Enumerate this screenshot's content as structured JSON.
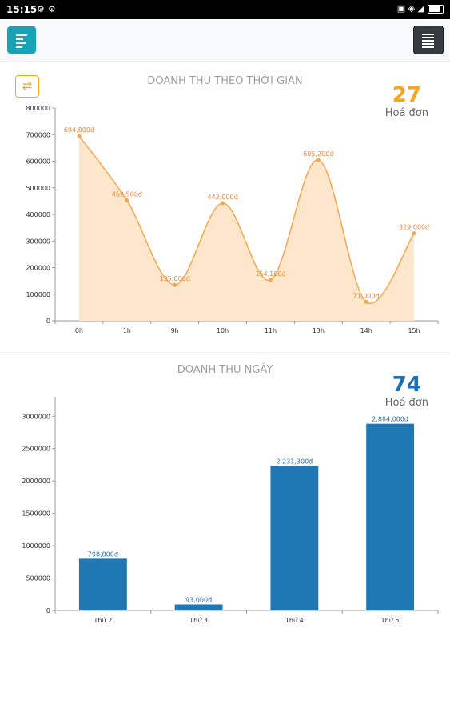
{
  "status": {
    "time": "15:15"
  },
  "charts": [
    {
      "header": {
        "title": "DOANH THU THEO THỜI GIAN",
        "count": "27",
        "count_label": "Hoá đơn"
      },
      "chart_data": {
        "type": "area",
        "title": "DOANH THU THEO THỜI GIAN",
        "categories": [
          "0h",
          "1h",
          "9h",
          "10h",
          "11h",
          "13h",
          "14h",
          "15h"
        ],
        "values": [
          694800,
          452500,
          135000,
          442000,
          154100,
          605200,
          71000,
          329000
        ],
        "data_labels": [
          "694,800đ",
          "452,500đ",
          "135,000đ",
          "442,000đ",
          "154,100đ",
          "605,200đ",
          "71,000đ",
          "329,000đ"
        ],
        "yticks": [
          "0",
          "100000",
          "200000",
          "300000",
          "400000",
          "500000",
          "600000",
          "700000",
          "800000"
        ],
        "ylim": [
          0,
          800000
        ],
        "color": "#f5a64c",
        "fill": "#fde7cc"
      }
    },
    {
      "header": {
        "title": "DOANH THU NGÀY",
        "count": "74",
        "count_label": "Hoá đơn"
      },
      "chart_data": {
        "type": "bar",
        "title": "DOANH THU NGÀY",
        "categories": [
          "Thứ 2",
          "Thứ 3",
          "Thứ 4",
          "Thứ 5"
        ],
        "values": [
          798800,
          93000,
          2231300,
          2884000
        ],
        "data_labels": [
          "798,800đ",
          "93,000đ",
          "2,231,300đ",
          "2,884,000đ"
        ],
        "yticks": [
          "0",
          "500000",
          "1000000",
          "1500000",
          "2000000",
          "2500000",
          "3000000"
        ],
        "ylim": [
          0,
          3300000
        ],
        "color": "#1f77b4"
      }
    }
  ],
  "colors": {
    "accent_orange": "#f5a623",
    "accent_blue": "#1f6fb2",
    "teal": "#17a2b8",
    "dark": "#343a40"
  }
}
